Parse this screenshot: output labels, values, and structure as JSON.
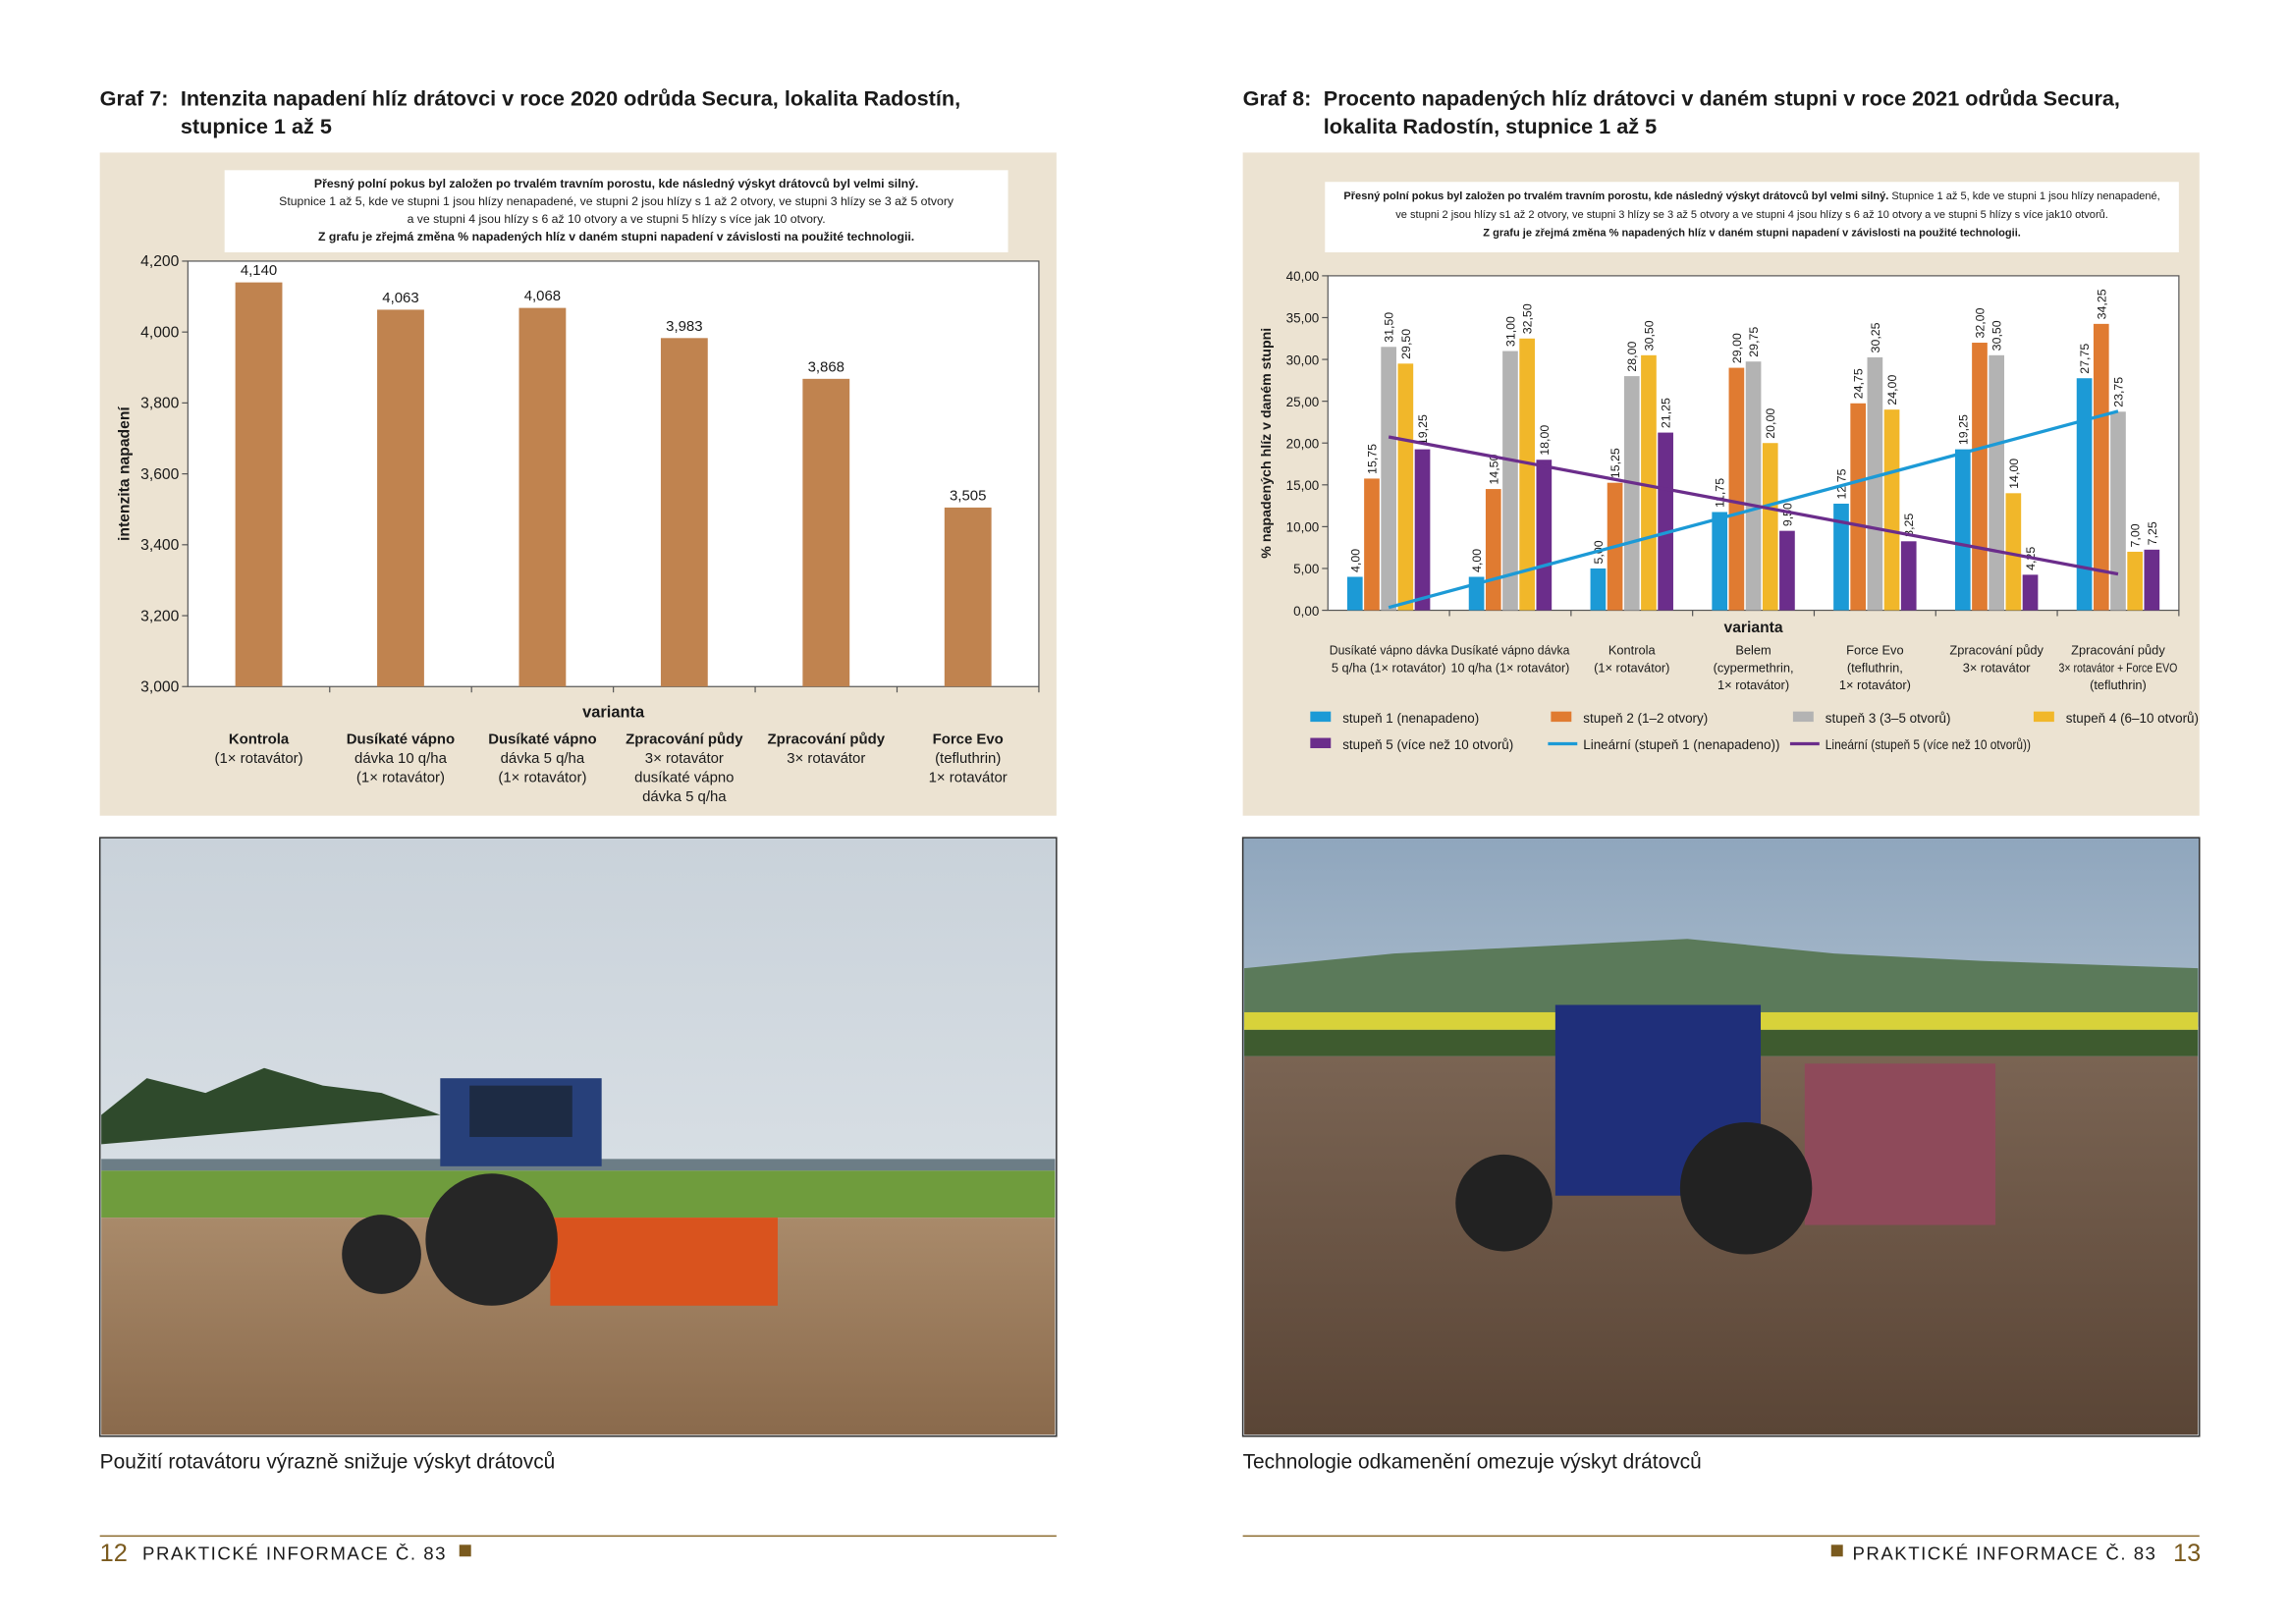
{
  "chart_data": [
    {
      "type": "bar",
      "label": "Graf 7:",
      "title": [
        "Intenzita napadení hlíz drátovci v roce 2020 odrůda Secura, lokalita Radostín,",
        "stupnice 1 až 5"
      ],
      "note": [
        [
          {
            "text": "Přesný polní pokus byl založen po trvalém travním porostu, kde následný výskyt drátovců byl velmi silný.",
            "bold": true
          }
        ],
        [
          {
            "text": "Stupnice 1 až 5, kde ve stupni 1 jsou hlízy nenapadené, ve stupni 2 jsou hlízy s 1 až 2 otvory, ve stupni 3 hlízy se 3 až 5 otvory",
            "bold": false
          }
        ],
        [
          {
            "text": "a ve stupni 4 jsou hlízy s 6 až 10 otvory a ve stupni 5 hlízy s více jak 10 otvory.",
            "bold": false
          }
        ],
        [
          {
            "text": "Z grafu je zřejmá změna % napadených hlíz v daném stupni napadení v závislosti na použité technologii.",
            "bold": true
          }
        ]
      ],
      "categories": [
        [
          "Kontrola",
          "(1× rotavátor)"
        ],
        [
          "Dusíkaté vápno",
          "dávka 10 q/ha",
          "(1× rotavátor)"
        ],
        [
          "Dusíkaté vápno",
          "dávka 5 q/ha",
          "(1× rotavátor)"
        ],
        [
          "Zpracování půdy",
          "3× rotavátor",
          "dusíkaté vápno",
          "dávka 5 q/ha"
        ],
        [
          "Zpracování půdy",
          "3× rotavátor"
        ],
        [
          "Force Evo",
          "(tefluthrin)",
          "1× rotavátor"
        ]
      ],
      "values": [
        4.14,
        4.063,
        4.068,
        3.983,
        3.868,
        3.505
      ],
      "value_labels": [
        "4,140",
        "4,063",
        "4,068",
        "3,983",
        "3,868",
        "3,505"
      ],
      "color": "#c0834f",
      "x_label": "varianta",
      "y_label": "intenzita napadení",
      "ylim": [
        3.0,
        4.2
      ],
      "yticks": [
        {
          "value": 3.0,
          "label": "3,000"
        },
        {
          "value": 3.2,
          "label": "3,200"
        },
        {
          "value": 3.4,
          "label": "3,400"
        },
        {
          "value": 3.6,
          "label": "3,600"
        },
        {
          "value": 3.8,
          "label": "3,800"
        },
        {
          "value": 4.0,
          "label": "4,000"
        },
        {
          "value": 4.2,
          "label": "4,200"
        }
      ]
    },
    {
      "type": "grouped_bar",
      "label": "Graf 8:",
      "title": [
        "Procento napadených hlíz drátovci v daném stupni v roce 2021 odrůda Secura,",
        "lokalita Radostín, stupnice 1 až 5"
      ],
      "note": [
        [
          {
            "text": "Přesný polní pokus byl založen po trvalém travním porostu, kde následný výskyt drátovců byl velmi silný.",
            "bold": true
          },
          {
            "text": " Stupnice 1 až 5, kde ve stupni 1 jsou hlízy nenapadené,",
            "bold": false
          }
        ],
        [
          {
            "text": "ve stupni 2 jsou hlízy s1 až 2 otvory, ve stupni 3 hlízy se 3 až 5 otvory a ve stupni 4 jsou hlízy s 6 až 10 otvory a ve stupni 5 hlízy s více jak10 otvorů.",
            "bold": false
          }
        ],
        [
          {
            "text": "Z grafu je zřejmá změna % napadených hlíz v daném stupni napadení v závislosti na použité technologii.",
            "bold": true
          }
        ]
      ],
      "categories": [
        [
          "Dusíkaté vápno dávka",
          "5 q/ha (1× rotavátor)"
        ],
        [
          "Dusíkaté vápno dávka",
          "10 q/ha (1× rotavátor)"
        ],
        [
          "Kontrola",
          "(1× rotavátor)"
        ],
        [
          "Belem",
          "(cypermethrin,",
          "1× rotavátor)"
        ],
        [
          "Force Evo",
          "(tefluthrin,",
          "1× rotavátor)"
        ],
        [
          "Zpracování půdy",
          "3× rotavátor"
        ],
        [
          "Zpracování půdy",
          "3× rotavátor + Force EVO",
          "(tefluthrin)"
        ]
      ],
      "series": [
        {
          "name": "stupeň 1 (nenapadeno)",
          "color": "#1c9ad6",
          "values": [
            4.0,
            4.0,
            5.0,
            11.75,
            12.75,
            19.25,
            27.75
          ],
          "value_labels": [
            "4,00",
            "4,00",
            "5,00",
            "11,75",
            "12,75",
            "19,25",
            "27,75"
          ]
        },
        {
          "name": "stupeň 2 (1–2 otvory)",
          "color": "#e07b31",
          "values": [
            15.75,
            14.5,
            15.25,
            29.0,
            24.75,
            32.0,
            34.25
          ],
          "value_labels": [
            "15,75",
            "14,50",
            "15,25",
            "29,00",
            "24,75",
            "32,00",
            "34,25"
          ]
        },
        {
          "name": "stupeň 3 (3–5 otvorů)",
          "color": "#b3b3b3",
          "values": [
            31.5,
            31.0,
            28.0,
            29.75,
            30.25,
            30.5,
            23.75
          ],
          "value_labels": [
            "31,50",
            "31,00",
            "28,00",
            "29,75",
            "30,25",
            "30,50",
            "23,75"
          ]
        },
        {
          "name": "stupeň 4 (6–10 otvorů)",
          "color": "#f1b72a",
          "values": [
            29.5,
            32.5,
            30.5,
            20.0,
            24.0,
            14.0,
            7.0
          ],
          "value_labels": [
            "29,50",
            "32,50",
            "30,50",
            "20,00",
            "24,00",
            "14,00",
            "7,00"
          ]
        },
        {
          "name": "stupeň 5 (více než 10 otvorů)",
          "color": "#6b2d8b",
          "values": [
            19.25,
            18.0,
            21.25,
            9.5,
            8.25,
            4.25,
            7.25
          ],
          "value_labels": [
            "19,25",
            "18,00",
            "21,25",
            "9,50",
            "8,25",
            "4,25",
            "7,25"
          ]
        }
      ],
      "trendlines": [
        {
          "name": "Lineární (stupeň 1 (nenapadeno))",
          "series": 0,
          "color": "#1c9ad6"
        },
        {
          "name": "Lineární (stupeň 5 (více než 10 otvorů))",
          "series": 4,
          "color": "#6b2d8b"
        }
      ],
      "x_label": "varianta",
      "y_label": "% napadených hlíz v daném stupni",
      "ylim": [
        0,
        40
      ],
      "yticks": [
        {
          "value": 0,
          "label": "0,00"
        },
        {
          "value": 5,
          "label": "5,00"
        },
        {
          "value": 10,
          "label": "10,00"
        },
        {
          "value": 15,
          "label": "15,00"
        },
        {
          "value": 20,
          "label": "20,00"
        },
        {
          "value": 25,
          "label": "25,00"
        },
        {
          "value": 30,
          "label": "30,00"
        },
        {
          "value": 35,
          "label": "35,00"
        },
        {
          "value": 40,
          "label": "40,00"
        }
      ]
    }
  ],
  "photos": [
    {
      "caption": "Použití rotavátoru výrazně snižuje výskyt drátovců"
    },
    {
      "caption": "Technologie odkamenění omezuje výskyt drátovců"
    }
  ],
  "footer": {
    "left_page": "12",
    "left_text": "PRAKTICKÉ INFORMACE Č. 83",
    "right_text": "PRAKTICKÉ INFORMACE Č. 83",
    "right_page": "13"
  }
}
